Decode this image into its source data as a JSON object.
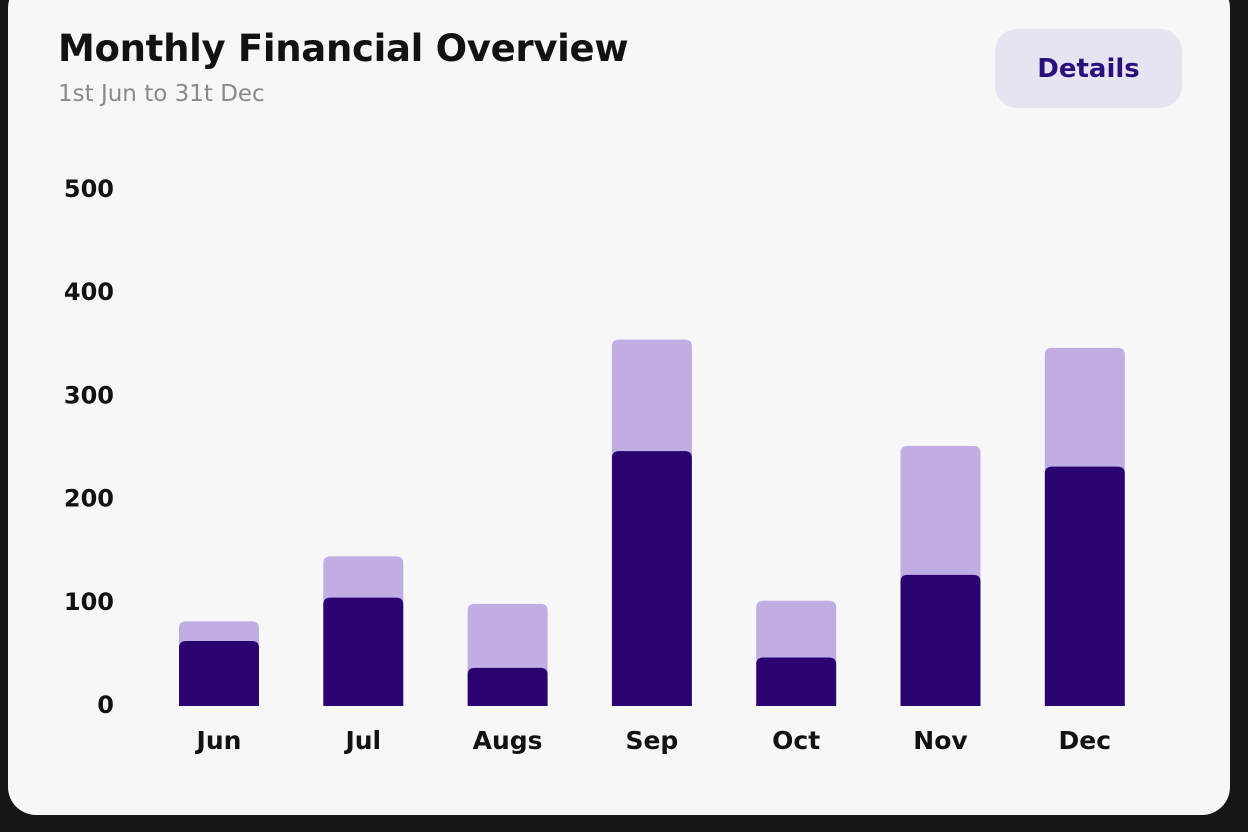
{
  "header": {
    "title": "Monthly Financial Overview",
    "subtitle": "1st Jun to 31t Dec",
    "details_label": "Details"
  },
  "colors": {
    "bar_dark": "#2a0370",
    "bar_light": "#bfade3",
    "button_bg": "#e7e4f2",
    "button_text": "#2b0f7a"
  },
  "chart_data": {
    "type": "bar",
    "stacked": true,
    "categories": [
      "Jun",
      "Jul",
      "Augs",
      "Sep",
      "Oct",
      "Nov",
      "Dec"
    ],
    "series": [
      {
        "values": [
          63,
          105,
          37,
          247,
          47,
          127,
          232
        ]
      },
      {
        "values": [
          19,
          40,
          62,
          108,
          55,
          125,
          115
        ]
      }
    ],
    "totals": [
      82,
      145,
      99,
      355,
      102,
      252,
      347
    ],
    "yticks": [
      0,
      100,
      200,
      300,
      400,
      500
    ],
    "ylim": [
      0,
      500
    ],
    "grid": false,
    "legend": "none"
  }
}
